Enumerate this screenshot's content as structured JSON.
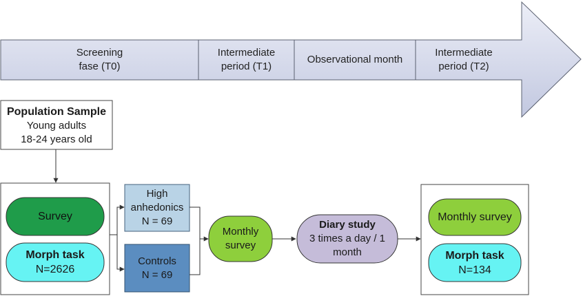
{
  "timeline": {
    "phases": [
      {
        "line1": "Screening",
        "line2": "fase (T0)"
      },
      {
        "line1": "Intermediate",
        "line2": "period (T1)"
      },
      {
        "line1": "Observational month",
        "line2": ""
      },
      {
        "line1": "Intermediate",
        "line2": "period (T2)"
      }
    ]
  },
  "population": {
    "title": "Population Sample",
    "line1": "Young adults",
    "line2": "18-24 years old"
  },
  "baseline": {
    "survey_label": "Survey",
    "morph_title": "Morph task",
    "morph_n": "N=2626"
  },
  "groups": {
    "high": {
      "line1": "High",
      "line2": "anhedonics",
      "n": "N = 69"
    },
    "controls": {
      "line1": "Controls",
      "n": "N = 69"
    }
  },
  "monthly": {
    "line1": "Monthly",
    "line2": "survey"
  },
  "diary": {
    "title": "Diary study",
    "line1": "3 times a day / 1",
    "line2": "month"
  },
  "final": {
    "survey_label": "Monthly survey",
    "morph_title": "Morph task",
    "morph_n": "N=134"
  },
  "colors": {
    "arrow_fill_top": "#e9ecf6",
    "arrow_fill_bottom": "#c3c9e1",
    "survey_green": "#1f9c4a",
    "light_green": "#8ecf3c",
    "cyan": "#66f3f3",
    "light_blue": "#b9d3e6",
    "steel_blue": "#5b8dc0",
    "lavender": "#c5bcd9"
  }
}
